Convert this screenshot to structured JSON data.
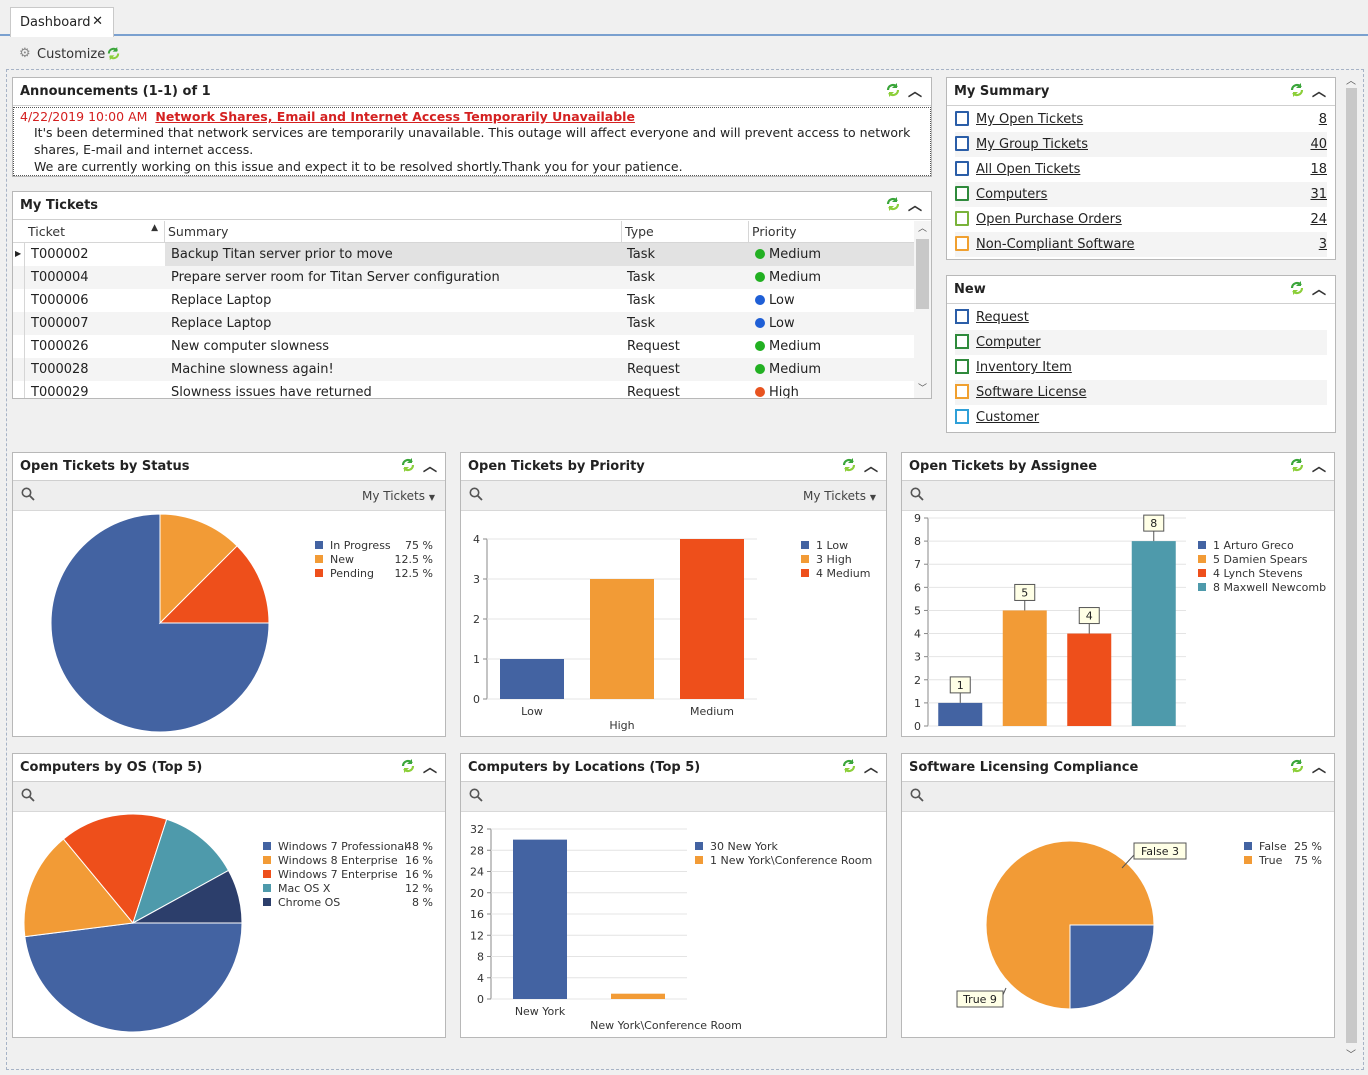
{
  "tab": {
    "label": "Dashboard",
    "close": "✕"
  },
  "toolbar": {
    "customize": "Customize"
  },
  "announcements": {
    "title": "Announcements (1-1) of 1",
    "date": "4/22/2019 10:00 AM",
    "headline": "Network Shares, Email and Internet Access Temporarily Unavailable",
    "body1": "It's been determined that network services are temporarily unavailable. This outage will affect everyone and will prevent access to network shares, E-mail and internet access.",
    "body2": "We are currently working on this issue and expect it to be resolved shortly.Thank you for your patience."
  },
  "my_tickets": {
    "title": "My Tickets",
    "columns": [
      "Ticket",
      "Summary",
      "Type",
      "Priority"
    ],
    "rows": [
      {
        "ticket": "T000002",
        "summary": "Backup Titan server prior to move",
        "type": "Task",
        "priority": "Medium",
        "color": "#22b022"
      },
      {
        "ticket": "T000004",
        "summary": "Prepare server room for Titan Server configuration",
        "type": "Task",
        "priority": "Medium",
        "color": "#22b022"
      },
      {
        "ticket": "T000006",
        "summary": "Replace Laptop",
        "type": "Task",
        "priority": "Low",
        "color": "#1f5fd6"
      },
      {
        "ticket": "T000007",
        "summary": "Replace Laptop",
        "type": "Task",
        "priority": "Low",
        "color": "#1f5fd6"
      },
      {
        "ticket": "T000026",
        "summary": "New computer slowness",
        "type": "Request",
        "priority": "Medium",
        "color": "#22b022"
      },
      {
        "ticket": "T000028",
        "summary": "Machine slowness again!",
        "type": "Request",
        "priority": "Medium",
        "color": "#22b022"
      },
      {
        "ticket": "T000029",
        "summary": "Slowness issues have returned",
        "type": "Request",
        "priority": "High",
        "color": "#e8531f"
      }
    ]
  },
  "my_summary": {
    "title": "My Summary",
    "items": [
      {
        "label": "My Open Tickets",
        "count": "8",
        "icon": "ticket-icon",
        "color": "#2b5ea8"
      },
      {
        "label": "My Group Tickets",
        "count": "40",
        "icon": "ticket-icon",
        "color": "#2b5ea8"
      },
      {
        "label": "All Open Tickets",
        "count": "18",
        "icon": "ticket-icon",
        "color": "#2b5ea8"
      },
      {
        "label": "Computers",
        "count": "31",
        "icon": "computer-icon",
        "color": "#2f8a3c"
      },
      {
        "label": "Open Purchase Orders",
        "count": "24",
        "icon": "purchase-order-icon",
        "color": "#7ab33a"
      },
      {
        "label": "Non-Compliant Software",
        "count": "3",
        "icon": "software-icon",
        "color": "#f0a030"
      }
    ]
  },
  "new_panel": {
    "title": "New",
    "items": [
      {
        "label": "Request",
        "icon": "new-request-icon",
        "color": "#2b5ea8"
      },
      {
        "label": "Computer",
        "icon": "new-computer-icon",
        "color": "#2f8a3c"
      },
      {
        "label": "Inventory Item",
        "icon": "new-inventory-icon",
        "color": "#2f8a3c"
      },
      {
        "label": "Software License",
        "icon": "new-license-icon",
        "color": "#f0a030"
      },
      {
        "label": "Customer",
        "icon": "new-customer-icon",
        "color": "#2fa0d8"
      }
    ]
  },
  "filter_label": "My Tickets",
  "charts": {
    "status": {
      "title": "Open Tickets by Status"
    },
    "priority": {
      "title": "Open Tickets by Priority"
    },
    "assignee": {
      "title": "Open Tickets by Assignee"
    },
    "os": {
      "title": "Computers by OS (Top 5)"
    },
    "locations": {
      "title": "Computers by Locations (Top 5)"
    },
    "licensing": {
      "title": "Software Licensing Compliance"
    }
  },
  "chart_data": [
    {
      "type": "pie",
      "title": "Open Tickets by Status",
      "labels": [
        "In Progress",
        "New",
        "Pending"
      ],
      "values": [
        75,
        12.5,
        12.5
      ],
      "value_labels": [
        "75 %",
        "12.5 %",
        "12.5 %"
      ],
      "colors": [
        "#4363a2",
        "#f29b36",
        "#ee4f1b"
      ],
      "legend": "top-right"
    },
    {
      "type": "bar",
      "title": "Open Tickets by Priority",
      "categories": [
        "Low",
        "High",
        "Medium"
      ],
      "values": [
        1,
        3,
        4
      ],
      "legend_entries": [
        "1 Low",
        "3 High",
        "4 Medium"
      ],
      "colors": [
        "#4363a2",
        "#f29b36",
        "#ee4f1b"
      ],
      "ylim": [
        0,
        4
      ],
      "yticks": [
        0,
        1,
        2,
        3,
        4
      ],
      "legend": "top-right"
    },
    {
      "type": "bar",
      "title": "Open Tickets by Assignee",
      "categories": [
        "Arturo Greco",
        "Damien Spears",
        "Lynch Stevens",
        "Maxwell Newcomb"
      ],
      "values": [
        1,
        5,
        4,
        8
      ],
      "legend_entries": [
        "1 Arturo Greco",
        "5 Damien Spears",
        "4 Lynch Stevens",
        "8 Maxwell Newcomb"
      ],
      "colors": [
        "#4363a2",
        "#f29b36",
        "#ee4f1b",
        "#4e9aab"
      ],
      "ylim": [
        0,
        9
      ],
      "yticks": [
        0,
        1,
        2,
        3,
        4,
        5,
        6,
        7,
        8,
        9
      ],
      "legend": "top-right"
    },
    {
      "type": "pie",
      "title": "Computers by OS (Top 5)",
      "labels": [
        "Windows 7 Professional",
        "Windows 8 Enterprise",
        "Windows 7 Enterprise",
        "Mac OS X",
        "Chrome OS"
      ],
      "values": [
        48,
        16,
        16,
        12,
        8
      ],
      "value_labels": [
        "48 %",
        "16 %",
        "16 %",
        "12 %",
        "8 %"
      ],
      "colors": [
        "#4363a2",
        "#f29b36",
        "#ee4f1b",
        "#4e9aab",
        "#2c3e6b"
      ],
      "legend": "top-right"
    },
    {
      "type": "bar",
      "title": "Computers by Locations (Top 5)",
      "categories": [
        "New York",
        "New York\\Conference Room"
      ],
      "values": [
        30,
        1
      ],
      "legend_entries": [
        "30 New York",
        "1 New York\\Conference Room"
      ],
      "colors": [
        "#4363a2",
        "#f29b36"
      ],
      "ylim": [
        0,
        32
      ],
      "yticks": [
        0,
        4,
        8,
        12,
        16,
        20,
        24,
        28,
        32
      ],
      "legend": "top-right"
    },
    {
      "type": "pie",
      "title": "Software Licensing Compliance",
      "labels": [
        "False",
        "True"
      ],
      "values": [
        25,
        75
      ],
      "value_labels": [
        "25 %",
        "75 %"
      ],
      "point_labels": [
        "False 3",
        "True 9"
      ],
      "colors": [
        "#4363a2",
        "#f29b36"
      ],
      "legend": "top-right"
    }
  ]
}
